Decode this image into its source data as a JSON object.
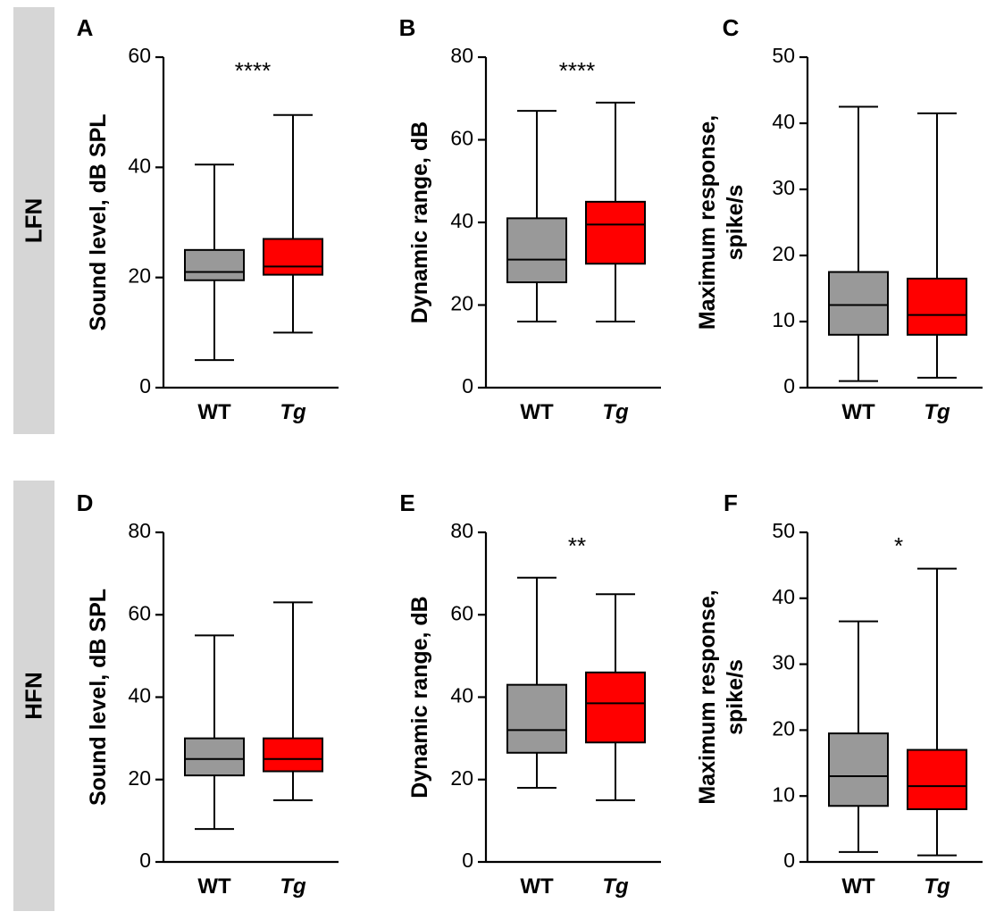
{
  "rows": [
    {
      "label": "LFN"
    },
    {
      "label": "HFN"
    }
  ],
  "colors": {
    "WT": "#999999",
    "Tg": "#ff0000",
    "axis": "#000000",
    "band": "#d6d6d6"
  },
  "chart_data": [
    {
      "panel": "A",
      "type": "box",
      "ylabel": "Sound level, dB SPL",
      "ylim": [
        0,
        60
      ],
      "yticks": [
        0,
        20,
        40,
        60
      ],
      "categories": [
        "WT",
        "Tg"
      ],
      "significance": "****",
      "boxes": [
        {
          "group": "WT",
          "min": 5,
          "q1": 19.5,
          "median": 21,
          "q3": 25,
          "max": 40.5
        },
        {
          "group": "Tg",
          "min": 10,
          "q1": 20.5,
          "median": 22,
          "q3": 27,
          "max": 49.5
        }
      ]
    },
    {
      "panel": "B",
      "type": "box",
      "ylabel": "Dynamic range, dB",
      "ylim": [
        0,
        80
      ],
      "yticks": [
        0,
        20,
        40,
        60,
        80
      ],
      "categories": [
        "WT",
        "Tg"
      ],
      "significance": "****",
      "boxes": [
        {
          "group": "WT",
          "min": 16,
          "q1": 25.5,
          "median": 31,
          "q3": 41,
          "max": 67
        },
        {
          "group": "Tg",
          "min": 16,
          "q1": 30,
          "median": 39.5,
          "q3": 45,
          "max": 69
        }
      ]
    },
    {
      "panel": "C",
      "type": "box",
      "ylabel": "Maximum response, spike/s",
      "ylabel_lines": [
        "Maximum response,",
        "spike/s"
      ],
      "ylim": [
        0,
        50
      ],
      "yticks": [
        0,
        10,
        20,
        30,
        40,
        50
      ],
      "categories": [
        "WT",
        "Tg"
      ],
      "significance": "",
      "boxes": [
        {
          "group": "WT",
          "min": 1,
          "q1": 8,
          "median": 12.5,
          "q3": 17.5,
          "max": 42.5
        },
        {
          "group": "Tg",
          "min": 1.5,
          "q1": 8,
          "median": 11,
          "q3": 16.5,
          "max": 41.5
        }
      ]
    },
    {
      "panel": "D",
      "type": "box",
      "ylabel": "Sound level, dB SPL",
      "ylim": [
        0,
        80
      ],
      "yticks": [
        0,
        20,
        40,
        60,
        80
      ],
      "categories": [
        "WT",
        "Tg"
      ],
      "significance": "",
      "boxes": [
        {
          "group": "WT",
          "min": 8,
          "q1": 21,
          "median": 25,
          "q3": 30,
          "max": 55
        },
        {
          "group": "Tg",
          "min": 15,
          "q1": 22,
          "median": 25,
          "q3": 30,
          "max": 63
        }
      ]
    },
    {
      "panel": "E",
      "type": "box",
      "ylabel": "Dynamic range, dB",
      "ylim": [
        0,
        80
      ],
      "yticks": [
        0,
        20,
        40,
        60,
        80
      ],
      "categories": [
        "WT",
        "Tg"
      ],
      "significance": "**",
      "boxes": [
        {
          "group": "WT",
          "min": 18,
          "q1": 26.5,
          "median": 32,
          "q3": 43,
          "max": 69
        },
        {
          "group": "Tg",
          "min": 15,
          "q1": 29,
          "median": 38.5,
          "q3": 46,
          "max": 65
        }
      ]
    },
    {
      "panel": "F",
      "type": "box",
      "ylabel": "Maximum response, spike/s",
      "ylabel_lines": [
        "Maximum response,",
        "spike/s"
      ],
      "ylim": [
        0,
        50
      ],
      "yticks": [
        0,
        10,
        20,
        30,
        40,
        50
      ],
      "categories": [
        "WT",
        "Tg"
      ],
      "significance": "*",
      "boxes": [
        {
          "group": "WT",
          "min": 1.5,
          "q1": 8.5,
          "median": 13,
          "q3": 19.5,
          "max": 36.5
        },
        {
          "group": "Tg",
          "min": 1,
          "q1": 8,
          "median": 11.5,
          "q3": 17,
          "max": 44.5
        }
      ]
    }
  ]
}
